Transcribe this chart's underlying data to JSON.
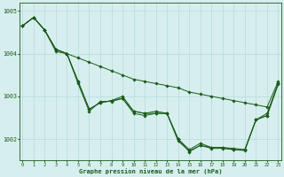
{
  "title": "Graphe pression niveau de la mer (hPa)",
  "x": [
    0,
    1,
    2,
    3,
    4,
    5,
    6,
    7,
    8,
    9,
    10,
    11,
    12,
    13,
    14,
    15,
    16,
    17,
    18,
    19,
    20,
    21,
    22,
    23
  ],
  "series": [
    [
      1004.65,
      1004.85,
      1004.55,
      1004.1,
      1004.0,
      1003.9,
      1003.8,
      1003.7,
      1003.6,
      1003.5,
      1003.4,
      1003.35,
      1003.3,
      1003.25,
      1003.2,
      1003.1,
      1003.05,
      1003.0,
      1002.95,
      1002.9,
      1002.85,
      1002.8,
      1002.75,
      1003.35
    ],
    [
      1004.65,
      1004.85,
      1004.55,
      1004.1,
      1004.0,
      1003.35,
      1002.7,
      1002.85,
      1002.9,
      1003.0,
      1002.65,
      1002.6,
      1002.65,
      1002.6,
      1002.0,
      1001.75,
      1001.9,
      1001.8,
      1001.8,
      1001.78,
      1001.75,
      1002.45,
      1002.6,
      1003.3
    ],
    [
      1004.65,
      1004.85,
      1004.55,
      1004.1,
      1004.0,
      1003.35,
      1002.7,
      1002.85,
      1002.9,
      1002.95,
      1002.65,
      1002.6,
      1002.6,
      1002.6,
      1002.0,
      1001.7,
      1001.85,
      1001.8,
      1001.8,
      1001.75,
      1001.75,
      1002.45,
      1002.55,
      1003.3
    ],
    [
      1004.65,
      1004.85,
      1004.55,
      1004.05,
      1004.0,
      1003.3,
      1002.65,
      1002.88,
      1002.88,
      1002.95,
      1002.6,
      1002.55,
      1002.6,
      1002.6,
      1001.95,
      1001.72,
      1001.85,
      1001.78,
      1001.78,
      1001.75,
      1001.73,
      1002.45,
      1002.55,
      1003.28
    ]
  ],
  "line_color": "#1a5c1a",
  "marker_color": "#1a5c1a",
  "bg_color": "#d6eeee",
  "grid_color": "#b8dada",
  "tick_color": "#1a5c1a",
  "label_color": "#1a5c1a",
  "ylim": [
    1001.5,
    1005.2
  ],
  "yticks": [
    1002,
    1003,
    1004,
    1005
  ],
  "xticks": [
    0,
    1,
    2,
    3,
    4,
    5,
    6,
    7,
    8,
    9,
    10,
    11,
    12,
    13,
    14,
    15,
    16,
    17,
    18,
    19,
    20,
    21,
    22,
    23
  ]
}
